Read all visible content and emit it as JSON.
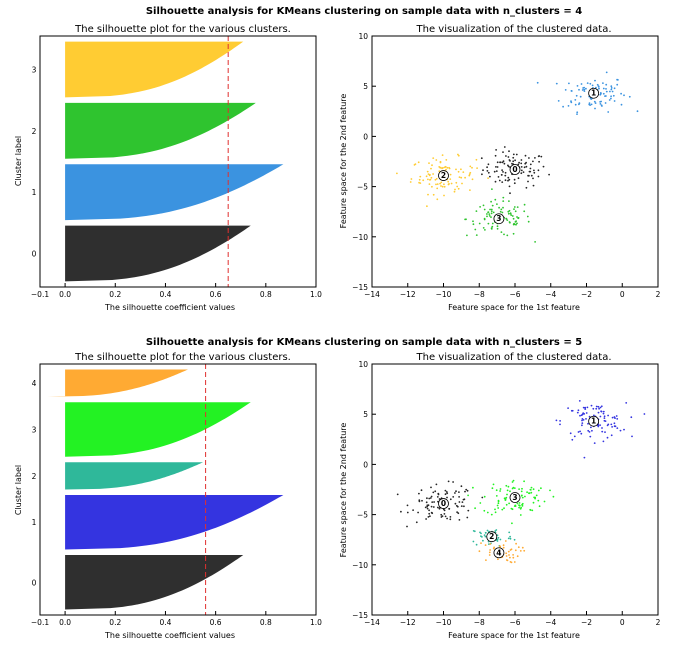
{
  "colors": {
    "gray": "#2f2f2f",
    "black": "#262626",
    "blue": "#3b93e0",
    "green": "#2fc42f",
    "yellow": "#ffcc33",
    "indigo": "#3434e0",
    "brightgreen": "#23f223",
    "teal": "#2fb89a",
    "orange": "#ffaa33",
    "avg_line": "#e0302f"
  },
  "figures": [
    {
      "suptitle": "Silhouette analysis for KMeans clustering on sample data with n_clusters = 4",
      "silhouette": {
        "title": "The silhouette plot for the various clusters.",
        "xlabel": "The silhouette coefficient values",
        "ylabel": "Cluster label",
        "xticks": [
          "−0.1",
          "0.0",
          "0.2",
          "0.4",
          "0.6",
          "0.8",
          "1.0"
        ],
        "average": 0.65
      },
      "scatter": {
        "title": "The visualization of the clustered data.",
        "xlabel": "Feature space for the 1st feature",
        "ylabel": "Feature space for the 2nd feature",
        "xticks": [
          "−14",
          "−12",
          "−10",
          "−8",
          "−6",
          "−4",
          "−2",
          "0",
          "2"
        ],
        "yticks": [
          "−15",
          "−10",
          "−5",
          "0",
          "5",
          "10"
        ]
      }
    },
    {
      "suptitle": "Silhouette analysis for KMeans clustering on sample data with n_clusters = 5",
      "silhouette": {
        "title": "The silhouette plot for the various clusters.",
        "xlabel": "The silhouette coefficient values",
        "ylabel": "Cluster label",
        "xticks": [
          "−0.1",
          "0.0",
          "0.2",
          "0.4",
          "0.6",
          "0.8",
          "1.0"
        ],
        "average": 0.56
      },
      "scatter": {
        "title": "The visualization of the clustered data.",
        "xlabel": "Feature space for the 1st feature",
        "ylabel": "Feature space for the 2nd feature",
        "xticks": [
          "−14",
          "−12",
          "−10",
          "−8",
          "−6",
          "−4",
          "−2",
          "0",
          "2"
        ],
        "yticks": [
          "−15",
          "−10",
          "−5",
          "0",
          "5",
          "10"
        ]
      }
    }
  ],
  "chart_data": [
    {
      "type": "silhouette",
      "title": "The silhouette plot for the various clusters.",
      "xlabel": "The silhouette coefficient values",
      "ylabel": "Cluster label",
      "xlim": [
        -0.1,
        1.0
      ],
      "grid": false,
      "average_silhouette": 0.65,
      "clusters": [
        {
          "label": "0",
          "color": "gray",
          "size": 100,
          "max": 0.74,
          "min": 0.0
        },
        {
          "label": "1",
          "color": "blue",
          "size": 100,
          "max": 0.87,
          "min": 0.0
        },
        {
          "label": "2",
          "color": "green",
          "size": 100,
          "max": 0.76,
          "min": 0.0
        },
        {
          "label": "3",
          "color": "yellow",
          "size": 100,
          "max": 0.71,
          "min": 0.0
        }
      ]
    },
    {
      "type": "scatter",
      "title": "The visualization of the clustered data.",
      "xlabel": "Feature space for the 1st feature",
      "ylabel": "Feature space for the 2nd feature",
      "xlim": [
        -14,
        2
      ],
      "ylim": [
        -15,
        10
      ],
      "grid": false,
      "series": [
        {
          "label": "0",
          "color": "black",
          "center": [
            -6.0,
            -3.3
          ],
          "spread": [
            0.9,
            0.9
          ],
          "n": 100
        },
        {
          "label": "1",
          "color": "blue",
          "center": [
            -1.6,
            4.3
          ],
          "spread": [
            0.9,
            0.9
          ],
          "n": 100
        },
        {
          "label": "2",
          "color": "yellow",
          "center": [
            -10.0,
            -3.9
          ],
          "spread": [
            0.9,
            0.9
          ],
          "n": 100
        },
        {
          "label": "3",
          "color": "green",
          "center": [
            -6.9,
            -8.2
          ],
          "spread": [
            0.9,
            0.9
          ],
          "n": 100
        }
      ]
    },
    {
      "type": "silhouette",
      "title": "The silhouette plot for the various clusters.",
      "xlabel": "The silhouette coefficient values",
      "ylabel": "Cluster label",
      "xlim": [
        -0.1,
        1.0
      ],
      "grid": false,
      "average_silhouette": 0.56,
      "clusters": [
        {
          "label": "0",
          "color": "gray",
          "size": 100,
          "max": 0.71,
          "min": 0.0
        },
        {
          "label": "1",
          "color": "indigo",
          "size": 100,
          "max": 0.87,
          "min": 0.0
        },
        {
          "label": "2",
          "color": "teal",
          "size": 50,
          "max": 0.55,
          "min": 0.0
        },
        {
          "label": "3",
          "color": "brightgreen",
          "size": 100,
          "max": 0.74,
          "min": 0.0
        },
        {
          "label": "4",
          "color": "orange",
          "size": 50,
          "max": 0.49,
          "min": -0.07
        }
      ]
    },
    {
      "type": "scatter",
      "title": "The visualization of the clustered data.",
      "xlabel": "Feature space for the 1st feature",
      "ylabel": "Feature space for the 2nd feature",
      "xlim": [
        -14,
        2
      ],
      "ylim": [
        -15,
        10
      ],
      "grid": false,
      "series": [
        {
          "label": "0",
          "color": "black",
          "center": [
            -10.0,
            -3.9
          ],
          "spread": [
            0.9,
            0.9
          ],
          "n": 100
        },
        {
          "label": "1",
          "color": "indigo",
          "center": [
            -1.6,
            4.3
          ],
          "spread": [
            0.9,
            0.9
          ],
          "n": 100
        },
        {
          "label": "2",
          "color": "teal",
          "center": [
            -7.3,
            -7.2
          ],
          "spread": [
            0.6,
            0.5
          ],
          "n": 50
        },
        {
          "label": "3",
          "color": "brightgreen",
          "center": [
            -6.0,
            -3.3
          ],
          "spread": [
            0.9,
            0.9
          ],
          "n": 100
        },
        {
          "label": "4",
          "color": "orange",
          "center": [
            -6.9,
            -8.8
          ],
          "spread": [
            0.6,
            0.5
          ],
          "n": 50
        }
      ]
    }
  ]
}
